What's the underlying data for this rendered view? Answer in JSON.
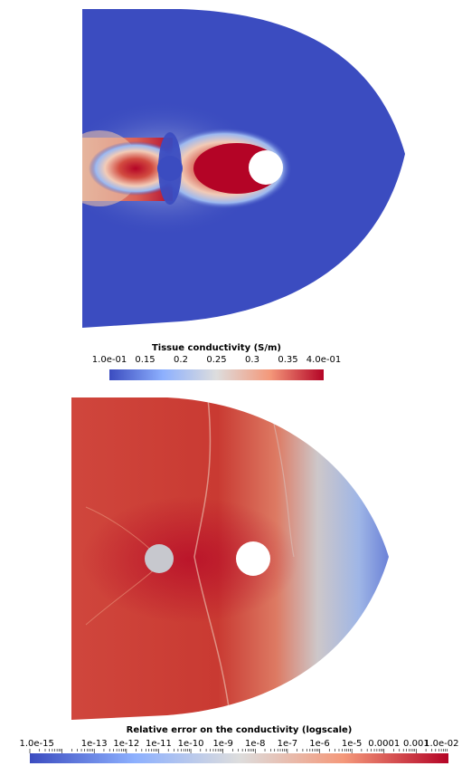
{
  "top_panel": {
    "colorbar": {
      "title": "Tissue conductivity (S/m)",
      "ticks": [
        "1.0e-01",
        "0.15",
        "0.2",
        "0.25",
        "0.3",
        "0.35",
        "4.0e-01"
      ],
      "range": [
        0.1,
        0.4
      ],
      "colors": {
        "low": "#3b4cc0",
        "mid": "#dddddd",
        "high": "#b40426"
      }
    }
  },
  "bottom_panel": {
    "colorbar": {
      "title": "Relative error on the conductivity (logscale)",
      "ticks": [
        "1.0e-15",
        "1e-13",
        "1e-12",
        "1e-11",
        "1e-10",
        "1e-9",
        "1e-8",
        "1e-7",
        "1e-6",
        "1e-5",
        "0.0001",
        "0.001",
        "1.0e-02"
      ],
      "scale": "log",
      "range": [
        1e-15,
        0.01
      ],
      "colors": {
        "low": "#3b4cc0",
        "mid": "#dddddd",
        "high": "#b40426"
      }
    }
  }
}
